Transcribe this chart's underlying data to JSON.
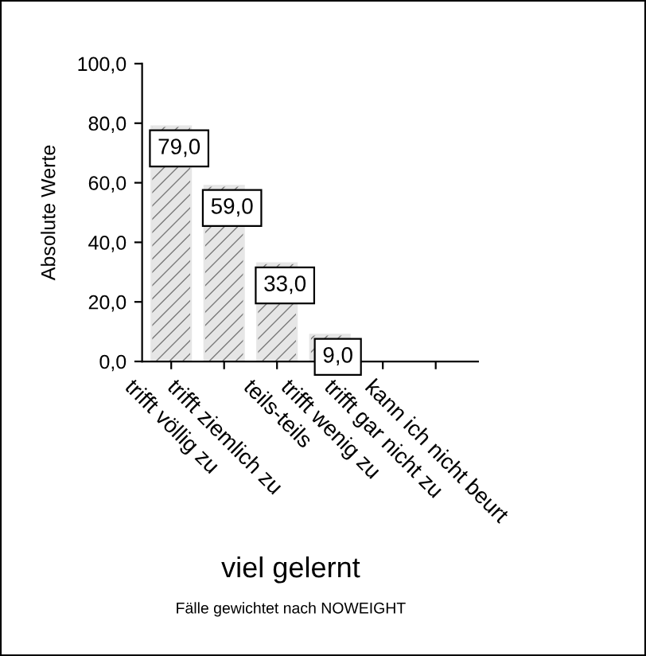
{
  "chart_data": {
    "type": "bar",
    "ylabel": "Absolute Werte",
    "categories": [
      "trifft völlig zu",
      "trifft ziemlich zu",
      "teils-teils",
      "trifft wenig zu",
      "trifft gar nicht zu",
      "kann ich nicht beurt"
    ],
    "values": [
      79,
      59,
      33,
      9,
      0,
      0
    ],
    "value_labels": [
      "79,0",
      "59,0",
      "33,0",
      "9,0",
      null,
      null
    ],
    "color": "#e6e6e6",
    "ylim": [
      0,
      100
    ],
    "yticks": [
      {
        "value": 0,
        "label": "0,0"
      },
      {
        "value": 20,
        "label": "20,0"
      },
      {
        "value": 40,
        "label": "40,0"
      },
      {
        "value": 60,
        "label": "60,0"
      },
      {
        "value": 80,
        "label": "80,0"
      },
      {
        "value": 100,
        "label": "100,0"
      }
    ],
    "annotations": [
      "viel gelernt",
      "Fälle gewichtet nach NOWEIGHT"
    ],
    "grid": false,
    "legend": false
  }
}
